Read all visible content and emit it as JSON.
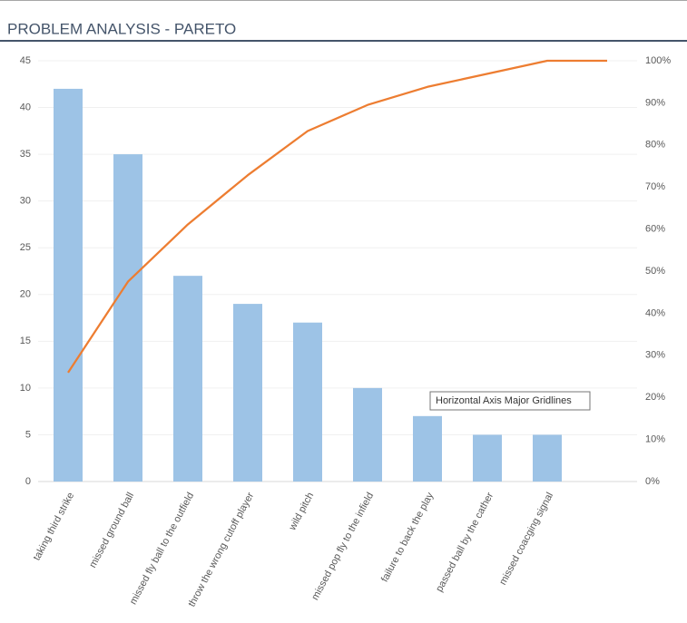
{
  "chart_data": {
    "type": "pareto",
    "title": "PROBLEM ANALYSIS - PARETO",
    "categories": [
      "taking third strike",
      "missed ground ball",
      "missed fly ball to the outfield",
      "throw the wrong cutoff player",
      "wild pitch",
      "missed pop fly to the infield",
      "failure to back the play",
      "passed ball by the cather",
      "missed coacging signal",
      null
    ],
    "series": [
      {
        "type": "bar",
        "color": "#9dc3e6",
        "values": [
          42,
          35,
          22,
          19,
          17,
          10,
          7,
          5,
          5,
          null
        ]
      },
      {
        "type": "line",
        "axis": "y2",
        "color": "#ed7d31",
        "values": [
          25.9,
          47.5,
          61.1,
          72.8,
          83.3,
          89.5,
          93.8,
          96.9,
          100,
          100
        ]
      }
    ],
    "ylim": [
      0,
      45
    ],
    "yticks": [
      0,
      5,
      10,
      15,
      20,
      25,
      30,
      35,
      40,
      45
    ],
    "y2lim": [
      0,
      100
    ],
    "y2ticks": [
      {
        "value": 0,
        "label": "0%"
      },
      {
        "value": 10,
        "label": "10%"
      },
      {
        "value": 20,
        "label": "20%"
      },
      {
        "value": 30,
        "label": "30%"
      },
      {
        "value": 40,
        "label": "40%"
      },
      {
        "value": 50,
        "label": "50%"
      },
      {
        "value": 60,
        "label": "60%"
      },
      {
        "value": 70,
        "label": "70%"
      },
      {
        "value": 80,
        "label": "80%"
      },
      {
        "value": 90,
        "label": "90%"
      },
      {
        "value": 100,
        "label": "100%"
      }
    ],
    "grid": true,
    "tooltip": "Horizontal Axis Major Gridlines"
  }
}
